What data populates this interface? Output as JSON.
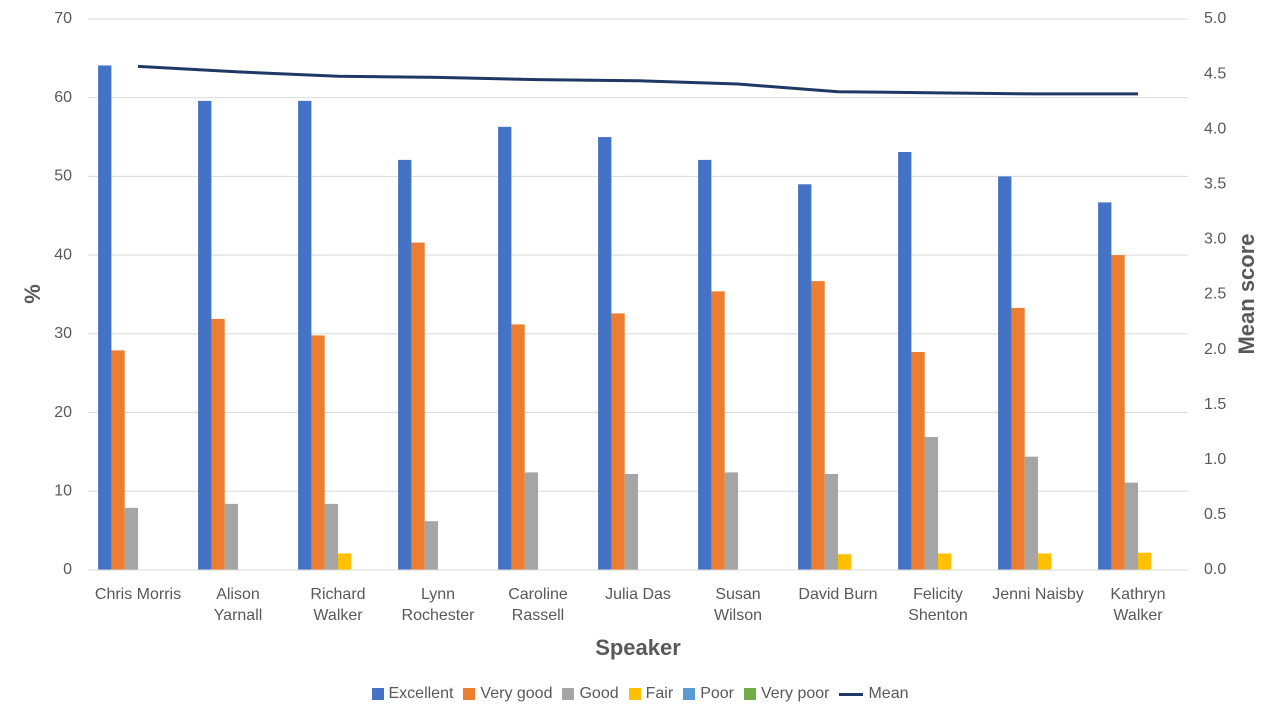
{
  "chart_data": {
    "type": "bar",
    "x_label": "Speaker",
    "y_label": "%",
    "y2_label": "Mean score",
    "categories": [
      "Chris Morris",
      "Alison Yarnall",
      "Richard Walker",
      "Lynn Rochester",
      "Caroline Rassell",
      "Julia Das",
      "Susan Wilson",
      "David Burn",
      "Felicity Shenton",
      "Jenni Naisby",
      "Kathryn Walker"
    ],
    "series": [
      {
        "name": "Excellent",
        "color": "#4472c4",
        "values": [
          64.1,
          59.6,
          59.6,
          52.1,
          56.3,
          55.0,
          52.1,
          49.0,
          53.1,
          50.0,
          46.7
        ]
      },
      {
        "name": "Very good",
        "color": "#ed7d31",
        "values": [
          27.9,
          31.9,
          29.8,
          41.6,
          31.2,
          32.6,
          35.4,
          36.7,
          27.7,
          33.3,
          40.0
        ]
      },
      {
        "name": "Good",
        "color": "#a5a5a5",
        "values": [
          7.9,
          8.4,
          8.4,
          6.2,
          12.4,
          12.2,
          12.4,
          12.2,
          16.9,
          14.4,
          11.1
        ]
      },
      {
        "name": "Fair",
        "color": "#ffc000",
        "values": [
          0,
          0,
          2.1,
          0,
          0,
          0,
          0,
          2.0,
          2.1,
          2.1,
          2.2
        ]
      },
      {
        "name": "Poor",
        "color": "#5b9bd5",
        "values": [
          0,
          0,
          0,
          0,
          0,
          0,
          0,
          0,
          0,
          0,
          0
        ]
      },
      {
        "name": "Very poor",
        "color": "#70ad47",
        "values": [
          0,
          0,
          0,
          0,
          0,
          0,
          0,
          0,
          0,
          0,
          0
        ]
      },
      {
        "name": "Mean",
        "color": "#203864",
        "type": "line",
        "axis": "y2",
        "values": [
          4.57,
          4.52,
          4.48,
          4.47,
          4.45,
          4.44,
          4.41,
          4.34,
          4.33,
          4.32,
          4.32
        ]
      }
    ],
    "ylim": [
      0,
      70
    ],
    "yticks": [
      0,
      10,
      20,
      30,
      40,
      50,
      60,
      70
    ],
    "y2lim": [
      0,
      5
    ],
    "y2ticks": [
      {
        "value": 0,
        "label": "0.0"
      },
      {
        "value": 0.5,
        "label": "0.5"
      },
      {
        "value": 1,
        "label": "1.0"
      },
      {
        "value": 1.5,
        "label": "1.5"
      },
      {
        "value": 2,
        "label": "2.0"
      },
      {
        "value": 2.5,
        "label": "2.5"
      },
      {
        "value": 3,
        "label": "3.0"
      },
      {
        "value": 3.5,
        "label": "3.5"
      },
      {
        "value": 4,
        "label": "4.0"
      },
      {
        "value": 4.5,
        "label": "4.5"
      },
      {
        "value": 5,
        "label": "5.0"
      }
    ],
    "grid": true,
    "legend": "bottom"
  }
}
